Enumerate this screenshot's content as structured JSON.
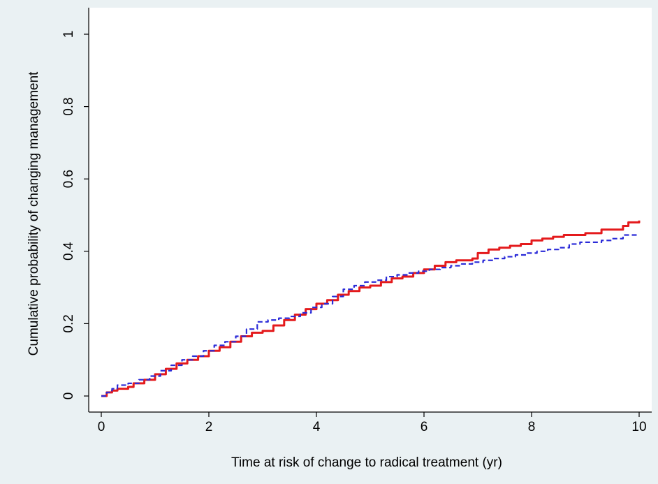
{
  "chart_data": {
    "type": "line",
    "title": "",
    "xlabel": "Time at risk of change to radical treatment (yr)",
    "ylabel": "Cumulative probability of changing management",
    "xlim": [
      0,
      10
    ],
    "ylim": [
      0,
      1
    ],
    "xticks": [
      0,
      2,
      4,
      6,
      8,
      10
    ],
    "xtick_labels": [
      "0",
      "2",
      "4",
      "6",
      "8",
      "10"
    ],
    "yticks": [
      0,
      0.2,
      0.4,
      0.6,
      0.8,
      1
    ],
    "ytick_labels": [
      "0",
      "0.2",
      "0.4",
      "0.6",
      "0.8",
      "1"
    ],
    "grid": false,
    "legend": "none",
    "background": "#eaf1f3",
    "plot_background": "#ffffff",
    "series": [
      {
        "color": "#e41a1c",
        "style": "solid",
        "x": [
          0.0,
          0.1,
          0.2,
          0.3,
          0.5,
          0.6,
          0.8,
          1.0,
          1.2,
          1.4,
          1.6,
          1.8,
          2.0,
          2.2,
          2.4,
          2.6,
          2.8,
          3.0,
          3.2,
          3.4,
          3.6,
          3.8,
          4.0,
          4.2,
          4.4,
          4.6,
          4.8,
          5.0,
          5.2,
          5.4,
          5.6,
          5.8,
          6.0,
          6.2,
          6.4,
          6.6,
          6.8,
          6.9,
          7.0,
          7.2,
          7.4,
          7.6,
          7.8,
          8.0,
          8.2,
          8.4,
          8.6,
          8.8,
          9.0,
          9.2,
          9.3,
          9.5,
          9.7,
          9.8,
          10.0
        ],
        "y": [
          0.0,
          0.01,
          0.015,
          0.02,
          0.025,
          0.035,
          0.045,
          0.06,
          0.075,
          0.09,
          0.1,
          0.11,
          0.125,
          0.135,
          0.15,
          0.165,
          0.175,
          0.18,
          0.195,
          0.21,
          0.225,
          0.24,
          0.255,
          0.265,
          0.28,
          0.29,
          0.3,
          0.305,
          0.315,
          0.325,
          0.33,
          0.34,
          0.35,
          0.36,
          0.37,
          0.375,
          0.375,
          0.38,
          0.395,
          0.405,
          0.41,
          0.415,
          0.42,
          0.43,
          0.435,
          0.44,
          0.445,
          0.445,
          0.45,
          0.45,
          0.46,
          0.46,
          0.47,
          0.48,
          0.485
        ]
      },
      {
        "color": "#2b2bd8",
        "style": "dashed",
        "x": [
          0.0,
          0.1,
          0.2,
          0.3,
          0.5,
          0.7,
          0.9,
          1.1,
          1.3,
          1.5,
          1.7,
          1.9,
          2.1,
          2.3,
          2.5,
          2.7,
          2.9,
          3.1,
          3.3,
          3.5,
          3.7,
          3.9,
          4.1,
          4.3,
          4.5,
          4.7,
          4.9,
          5.1,
          5.3,
          5.5,
          5.7,
          5.9,
          6.1,
          6.3,
          6.5,
          6.7,
          6.9,
          7.1,
          7.3,
          7.5,
          7.7,
          7.9,
          8.1,
          8.3,
          8.5,
          8.7,
          8.9,
          9.1,
          9.3,
          9.5,
          9.7,
          10.0
        ],
        "y": [
          0.0,
          0.01,
          0.02,
          0.03,
          0.035,
          0.045,
          0.055,
          0.07,
          0.085,
          0.1,
          0.11,
          0.125,
          0.14,
          0.15,
          0.165,
          0.185,
          0.205,
          0.21,
          0.215,
          0.22,
          0.23,
          0.245,
          0.255,
          0.275,
          0.295,
          0.305,
          0.315,
          0.32,
          0.33,
          0.335,
          0.34,
          0.345,
          0.35,
          0.355,
          0.36,
          0.365,
          0.37,
          0.375,
          0.38,
          0.385,
          0.39,
          0.395,
          0.4,
          0.405,
          0.41,
          0.42,
          0.425,
          0.425,
          0.43,
          0.435,
          0.445,
          0.445
        ]
      }
    ]
  }
}
